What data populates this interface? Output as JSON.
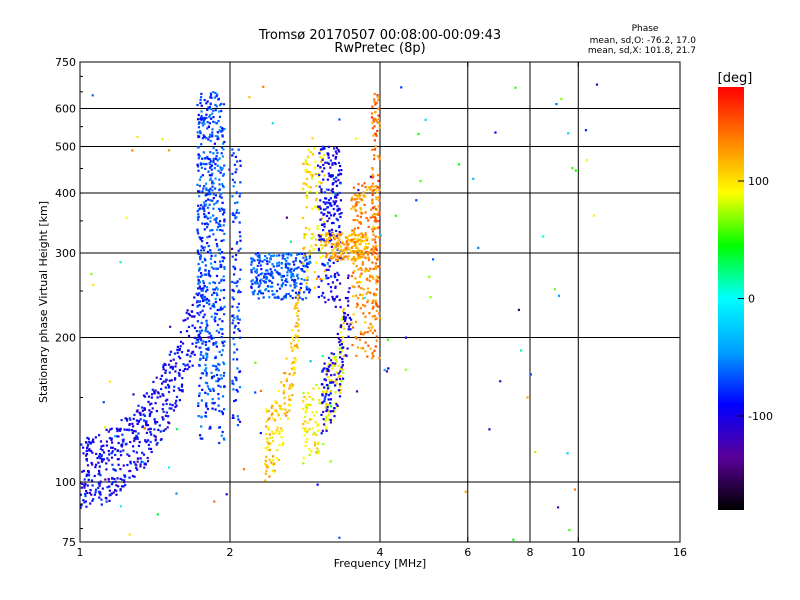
{
  "chart_data": {
    "type": "scatter",
    "title": "Tromsø 20170507 00:08:00-00:09:43",
    "subtitle": "RwPretec (8p)",
    "xlabel": "Frequency [MHz]",
    "ylabel": "Stationary phase Virtual Height [km]",
    "xscale": "log",
    "yscale": "log",
    "xlim": [
      1,
      16
    ],
    "ylim": [
      75,
      750
    ],
    "x_ticks": [
      1,
      2,
      4,
      6,
      8,
      10,
      16
    ],
    "x_ticklabels": [
      "1",
      "2",
      "4",
      "6",
      "8",
      "10",
      "16"
    ],
    "x_grid": [
      2,
      4,
      6,
      8,
      10
    ],
    "y_ticks": [
      75,
      100,
      200,
      300,
      400,
      500,
      600,
      750
    ],
    "y_ticklabels": [
      "75",
      "100",
      "200",
      "300",
      "400",
      "500",
      "600",
      "750"
    ],
    "y_grid": [
      100,
      200,
      300,
      400,
      500,
      600
    ],
    "grid": true,
    "stats": {
      "heading": "Phase",
      "line1": "mean, sd,O: -76.2, 17.0",
      "line2": "mean, sd,X: 101.8, 21.7"
    },
    "colorbar": {
      "label": "[deg]",
      "ticks": [
        100,
        0,
        -100
      ],
      "ticklabels": [
        "100",
        "0",
        "-100"
      ],
      "range": [
        -180,
        180
      ],
      "colors": [
        "#000000",
        "#5a009a",
        "#0000ff",
        "#00a0ff",
        "#00ffff",
        "#00ff00",
        "#ffff00",
        "#ff8000",
        "#ff0000"
      ]
    },
    "traces": [
      {
        "name": "",
        "fmin": 1.0,
        "fmax": 1.75,
        "hmin": 105,
        "hmax": 230,
        "phase": -95,
        "n": 520,
        "shape": "ramp"
      },
      {
        "name": "",
        "fmin": 1.72,
        "fmax": 1.95,
        "hmin": 120,
        "hmax": 650,
        "phase": -70,
        "n": 620,
        "shape": "column"
      },
      {
        "name": "",
        "fmin": 2.02,
        "fmax": 2.1,
        "hmin": 130,
        "hmax": 500,
        "phase": -75,
        "n": 110,
        "shape": "column"
      },
      {
        "name": "",
        "fmin": 2.2,
        "fmax": 2.9,
        "hmin": 240,
        "hmax": 300,
        "phase": -68,
        "n": 260,
        "shape": "band"
      },
      {
        "name": "",
        "fmin": 2.35,
        "fmax": 2.75,
        "hmin": 120,
        "hmax": 230,
        "phase": 110,
        "n": 160,
        "shape": "ramp"
      },
      {
        "name": "",
        "fmin": 2.8,
        "fmax": 3.1,
        "hmin": 250,
        "hmax": 500,
        "phase": 100,
        "n": 110,
        "shape": "column"
      },
      {
        "name": "",
        "fmin": 3.0,
        "fmax": 3.35,
        "hmin": 230,
        "hmax": 500,
        "phase": -95,
        "n": 220,
        "shape": "column"
      },
      {
        "name": "",
        "fmin": 2.8,
        "fmax": 3.4,
        "hmin": 130,
        "hmax": 200,
        "phase": 95,
        "n": 150,
        "shape": "ramp"
      },
      {
        "name": "",
        "fmin": 3.05,
        "fmax": 3.5,
        "hmin": 150,
        "hmax": 250,
        "phase": -100,
        "n": 120,
        "shape": "ramp"
      },
      {
        "name": "",
        "fmin": 3.1,
        "fmax": 3.8,
        "hmin": 290,
        "hmax": 330,
        "phase": 120,
        "n": 180,
        "shape": "band"
      },
      {
        "name": "",
        "fmin": 3.5,
        "fmax": 3.95,
        "hmin": 180,
        "hmax": 420,
        "phase": 130,
        "n": 220,
        "shape": "column"
      },
      {
        "name": "",
        "fmin": 3.85,
        "fmax": 4.0,
        "hmin": 180,
        "hmax": 650,
        "phase": 140,
        "n": 120,
        "shape": "column"
      },
      {
        "name": "",
        "fmin": 1.0,
        "fmax": 11.0,
        "hmin": 75,
        "hmax": 680,
        "phase": 0,
        "n": 110,
        "shape": "scatter"
      }
    ]
  }
}
